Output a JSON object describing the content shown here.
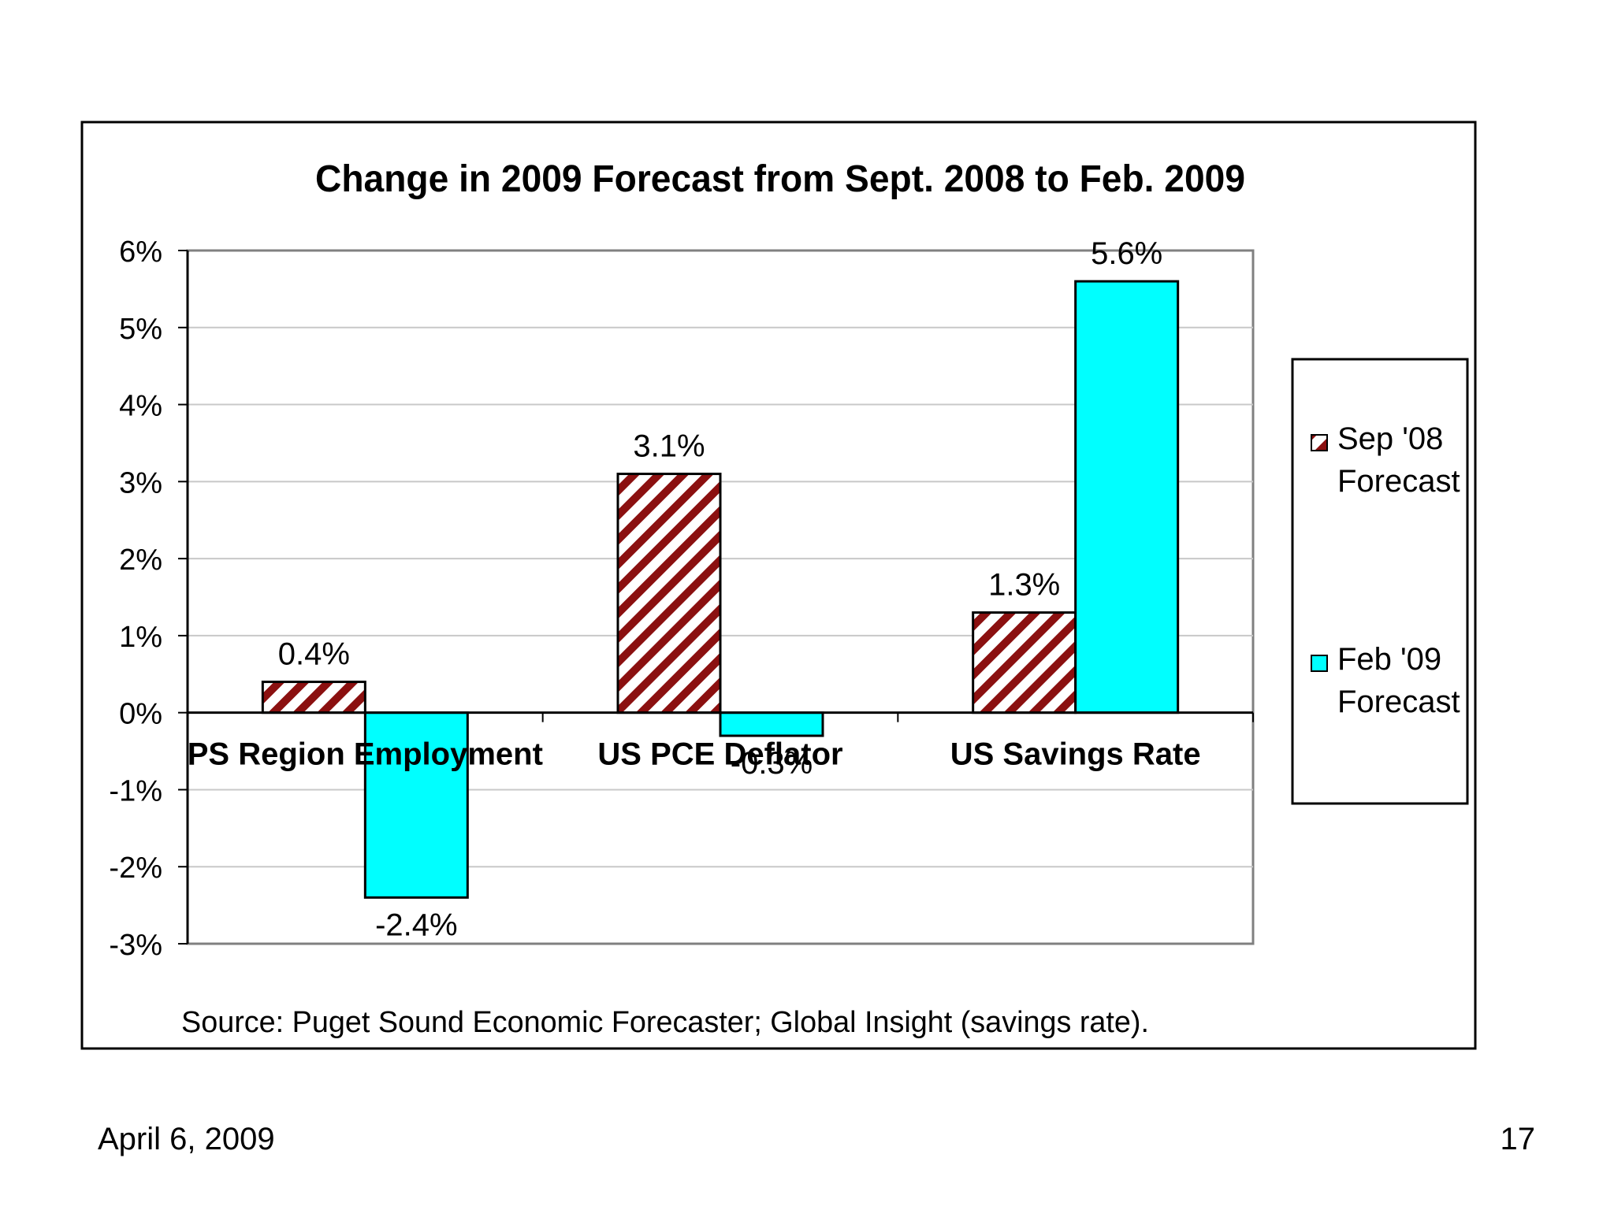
{
  "chart_data": {
    "type": "bar",
    "title": "Change in 2009 Forecast from Sept. 2008 to Feb. 2009",
    "categories": [
      "PS Region Employment",
      "US PCE Deflator",
      "US Savings Rate"
    ],
    "series": [
      {
        "name": "Sep '08 Forecast",
        "legend_lines": [
          "Sep '08",
          "Forecast"
        ],
        "fill": "hatched",
        "color": "#8b1010",
        "values": [
          0.4,
          3.1,
          1.3
        ],
        "labels": [
          "0.4%",
          "3.1%",
          "1.3%"
        ]
      },
      {
        "name": "Feb '09 Forecast",
        "legend_lines": [
          "Feb '09",
          "Forecast"
        ],
        "fill": "solid",
        "color": "#00ffff",
        "values": [
          -2.4,
          -0.3,
          5.6
        ],
        "labels": [
          "-2.4%",
          "-0.3%",
          "5.6%"
        ]
      }
    ],
    "yticks": [
      6,
      5,
      4,
      3,
      2,
      1,
      0,
      -1,
      -2,
      -3
    ],
    "ytick_labels": [
      "6%",
      "5%",
      "4%",
      "3%",
      "2%",
      "1%",
      "0%",
      "-1%",
      "-2%",
      "-3%"
    ],
    "ylim": [
      -3,
      6
    ],
    "xlabel": "",
    "ylabel": "",
    "grid": true,
    "legend_position": "right",
    "source": "Source: Puget Sound Economic Forecaster; Global Insight (savings rate)."
  },
  "footer": {
    "date": "April 6, 2009",
    "page_number": "17"
  }
}
